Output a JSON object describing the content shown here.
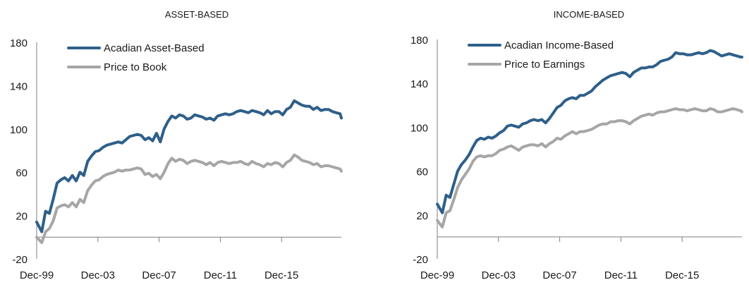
{
  "chart_data": [
    {
      "type": "line",
      "title": "ASSET-BASED",
      "xlabel": "",
      "ylabel": "",
      "ylim": [
        -20,
        180
      ],
      "yticks": [
        -20,
        20,
        60,
        100,
        140,
        180
      ],
      "xlim": [
        1999.92,
        2019.83
      ],
      "xtick_labels": [
        "Dec-99",
        "Dec-03",
        "Dec-07",
        "Dec-11",
        "Dec-15"
      ],
      "xtick_values": [
        1999.92,
        2003.92,
        2007.92,
        2011.92,
        2015.92
      ],
      "legend_position": "top-left",
      "grid": false,
      "series": [
        {
          "name": "Acadian Asset-Based",
          "color": "#2e5f8a",
          "x": [
            1999.92,
            2000.25,
            2000.5,
            2000.75,
            2001.0,
            2001.25,
            2001.5,
            2001.75,
            2002.0,
            2002.25,
            2002.5,
            2002.75,
            2003.0,
            2003.25,
            2003.5,
            2003.75,
            2004.0,
            2004.25,
            2004.5,
            2004.75,
            2005.0,
            2005.25,
            2005.5,
            2005.75,
            2006.0,
            2006.25,
            2006.5,
            2006.75,
            2007.0,
            2007.25,
            2007.5,
            2007.75,
            2008.0,
            2008.25,
            2008.5,
            2008.75,
            2009.0,
            2009.25,
            2009.5,
            2009.75,
            2010.0,
            2010.25,
            2010.5,
            2010.75,
            2011.0,
            2011.25,
            2011.5,
            2011.75,
            2012.0,
            2012.25,
            2012.5,
            2012.75,
            2013.0,
            2013.25,
            2013.5,
            2013.75,
            2014.0,
            2014.25,
            2014.5,
            2014.75,
            2015.0,
            2015.25,
            2015.5,
            2015.75,
            2016.0,
            2016.25,
            2016.5,
            2016.75,
            2017.0,
            2017.25,
            2017.5,
            2017.75,
            2018.0,
            2018.25,
            2018.5,
            2018.75,
            2019.0,
            2019.25,
            2019.5,
            2019.75,
            2019.83
          ],
          "values": [
            14,
            5,
            24,
            22,
            35,
            50,
            53,
            55,
            52,
            57,
            52,
            60,
            57,
            70,
            75,
            79,
            80,
            83,
            85,
            86,
            87,
            88,
            87,
            90,
            93,
            94,
            95,
            94,
            90,
            92,
            89,
            96,
            88,
            100,
            107,
            112,
            110,
            113,
            112,
            109,
            110,
            113,
            112,
            111,
            109,
            110,
            108,
            112,
            113,
            114,
            113,
            114,
            116,
            117,
            116,
            115,
            117,
            116,
            115,
            113,
            117,
            114,
            116,
            116,
            113,
            118,
            120,
            126,
            124,
            122,
            121,
            121,
            118,
            120,
            117,
            118,
            118,
            116,
            115,
            114,
            110
          ]
        },
        {
          "name": "Price to Book",
          "color": "#a6a6a6",
          "x": [
            1999.92,
            2000.25,
            2000.5,
            2000.75,
            2001.0,
            2001.25,
            2001.5,
            2001.75,
            2002.0,
            2002.25,
            2002.5,
            2002.75,
            2003.0,
            2003.25,
            2003.5,
            2003.75,
            2004.0,
            2004.25,
            2004.5,
            2004.75,
            2005.0,
            2005.25,
            2005.5,
            2005.75,
            2006.0,
            2006.25,
            2006.5,
            2006.75,
            2007.0,
            2007.25,
            2007.5,
            2007.75,
            2008.0,
            2008.25,
            2008.5,
            2008.75,
            2009.0,
            2009.25,
            2009.5,
            2009.75,
            2010.0,
            2010.25,
            2010.5,
            2010.75,
            2011.0,
            2011.25,
            2011.5,
            2011.75,
            2012.0,
            2012.25,
            2012.5,
            2012.75,
            2013.0,
            2013.25,
            2013.5,
            2013.75,
            2014.0,
            2014.25,
            2014.5,
            2014.75,
            2015.0,
            2015.25,
            2015.5,
            2015.75,
            2016.0,
            2016.25,
            2016.5,
            2016.75,
            2017.0,
            2017.25,
            2017.5,
            2017.75,
            2018.0,
            2018.25,
            2018.5,
            2018.75,
            2019.0,
            2019.25,
            2019.5,
            2019.75,
            2019.83
          ],
          "values": [
            0,
            -5,
            5,
            8,
            15,
            27,
            29,
            30,
            28,
            32,
            28,
            35,
            32,
            43,
            48,
            52,
            53,
            56,
            58,
            59,
            60,
            62,
            61,
            62,
            62,
            63,
            64,
            63,
            58,
            59,
            56,
            58,
            54,
            60,
            68,
            73,
            70,
            72,
            71,
            68,
            70,
            71,
            70,
            69,
            67,
            69,
            66,
            69,
            70,
            69,
            68,
            69,
            69,
            70,
            68,
            67,
            70,
            68,
            67,
            65,
            68,
            67,
            69,
            68,
            65,
            69,
            71,
            76,
            74,
            71,
            70,
            69,
            67,
            68,
            65,
            66,
            66,
            65,
            64,
            63,
            61
          ]
        }
      ]
    },
    {
      "type": "line",
      "title": "INCOME-BASED",
      "xlabel": "",
      "ylabel": "",
      "ylim": [
        -20,
        180
      ],
      "yticks": [
        -20,
        20,
        60,
        100,
        140,
        180
      ],
      "xlim": [
        1999.92,
        2019.83
      ],
      "xtick_labels": [
        "Dec-99",
        "Dec-03",
        "Dec-07",
        "Dec-11",
        "Dec-15"
      ],
      "xtick_values": [
        1999.92,
        2003.92,
        2007.92,
        2011.92,
        2015.92
      ],
      "legend_position": "top-left",
      "grid": false,
      "series": [
        {
          "name": "Acadian Income-Based",
          "color": "#2e5f8a",
          "x": [
            1999.92,
            2000.25,
            2000.5,
            2000.75,
            2001.0,
            2001.25,
            2001.5,
            2001.75,
            2002.0,
            2002.25,
            2002.5,
            2002.75,
            2003.0,
            2003.25,
            2003.5,
            2003.75,
            2004.0,
            2004.25,
            2004.5,
            2004.75,
            2005.0,
            2005.25,
            2005.5,
            2005.75,
            2006.0,
            2006.25,
            2006.5,
            2006.75,
            2007.0,
            2007.25,
            2007.5,
            2007.75,
            2008.0,
            2008.25,
            2008.5,
            2008.75,
            2009.0,
            2009.25,
            2009.5,
            2009.75,
            2010.0,
            2010.25,
            2010.5,
            2010.75,
            2011.0,
            2011.25,
            2011.5,
            2011.75,
            2012.0,
            2012.25,
            2012.5,
            2012.75,
            2013.0,
            2013.25,
            2013.5,
            2013.75,
            2014.0,
            2014.25,
            2014.5,
            2014.75,
            2015.0,
            2015.25,
            2015.5,
            2015.75,
            2016.0,
            2016.25,
            2016.5,
            2016.75,
            2017.0,
            2017.25,
            2017.5,
            2017.75,
            2018.0,
            2018.25,
            2018.5,
            2018.75,
            2019.0,
            2019.25,
            2019.5,
            2019.75,
            2019.83
          ],
          "values": [
            30,
            22,
            38,
            36,
            48,
            60,
            66,
            70,
            75,
            82,
            88,
            90,
            89,
            91,
            90,
            92,
            95,
            97,
            101,
            102,
            101,
            100,
            103,
            104,
            106,
            107,
            106,
            107,
            104,
            108,
            113,
            118,
            120,
            124,
            126,
            127,
            126,
            129,
            129,
            131,
            133,
            137,
            140,
            143,
            145,
            147,
            148,
            149,
            150,
            149,
            146,
            150,
            152,
            154,
            154,
            155,
            155,
            157,
            160,
            161,
            162,
            164,
            168,
            167,
            167,
            166,
            166,
            167,
            168,
            167,
            168,
            170,
            169,
            167,
            165,
            166,
            167,
            166,
            165,
            164,
            164
          ]
        },
        {
          "name": "Price to Earnings",
          "color": "#a6a6a6",
          "x": [
            1999.92,
            2000.25,
            2000.5,
            2000.75,
            2001.0,
            2001.25,
            2001.5,
            2001.75,
            2002.0,
            2002.25,
            2002.5,
            2002.75,
            2003.0,
            2003.25,
            2003.5,
            2003.75,
            2004.0,
            2004.25,
            2004.5,
            2004.75,
            2005.0,
            2005.25,
            2005.5,
            2005.75,
            2006.0,
            2006.25,
            2006.5,
            2006.75,
            2007.0,
            2007.25,
            2007.5,
            2007.75,
            2008.0,
            2008.25,
            2008.5,
            2008.75,
            2009.0,
            2009.25,
            2009.5,
            2009.75,
            2010.0,
            2010.25,
            2010.5,
            2010.75,
            2011.0,
            2011.25,
            2011.5,
            2011.75,
            2012.0,
            2012.25,
            2012.5,
            2012.75,
            2013.0,
            2013.25,
            2013.5,
            2013.75,
            2014.0,
            2014.25,
            2014.5,
            2014.75,
            2015.0,
            2015.25,
            2015.5,
            2015.75,
            2016.0,
            2016.25,
            2016.5,
            2016.75,
            2017.0,
            2017.25,
            2017.5,
            2017.75,
            2018.0,
            2018.25,
            2018.5,
            2018.75,
            2019.0,
            2019.25,
            2019.5,
            2019.75,
            2019.83
          ],
          "values": [
            15,
            9,
            22,
            24,
            34,
            45,
            52,
            57,
            62,
            69,
            73,
            74,
            73,
            74,
            74,
            76,
            79,
            80,
            82,
            83,
            81,
            79,
            82,
            83,
            84,
            84,
            83,
            85,
            82,
            85,
            87,
            90,
            89,
            92,
            94,
            96,
            94,
            96,
            96,
            97,
            98,
            100,
            102,
            103,
            103,
            105,
            105,
            106,
            106,
            105,
            103,
            106,
            108,
            110,
            111,
            112,
            111,
            113,
            114,
            114,
            115,
            116,
            117,
            116,
            116,
            115,
            116,
            117,
            116,
            115,
            115,
            117,
            116,
            114,
            114,
            115,
            116,
            117,
            116,
            115,
            114
          ]
        }
      ]
    }
  ]
}
